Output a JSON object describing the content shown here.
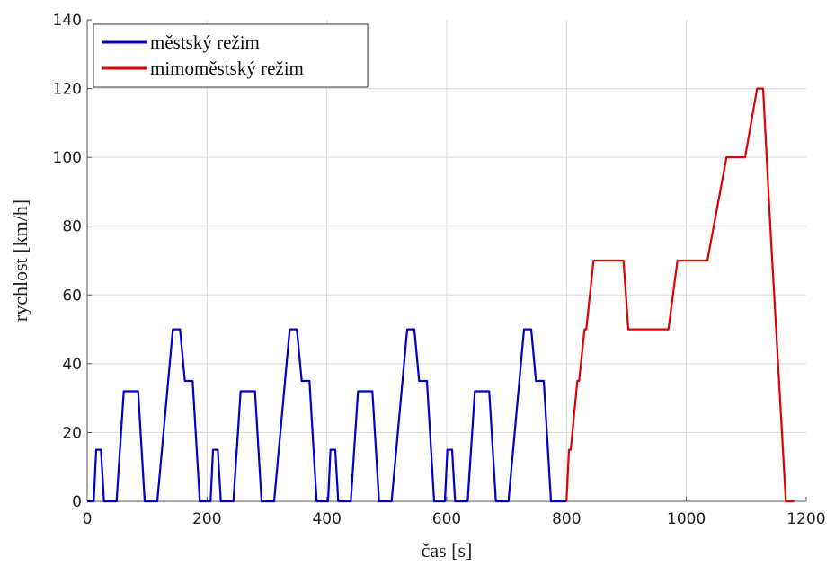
{
  "chart_data": {
    "type": "line",
    "xlabel": "čas [s]",
    "ylabel": "rychlost [km/h]",
    "xlim": [
      0,
      1200
    ],
    "ylim": [
      0,
      140
    ],
    "xticks": [
      0,
      200,
      400,
      600,
      800,
      1000,
      1200
    ],
    "yticks": [
      0,
      20,
      40,
      60,
      80,
      100,
      120,
      140
    ],
    "grid": true,
    "legend_position": "top-left",
    "series": [
      {
        "name": "městský režim",
        "color": "#0000c8",
        "points": [
          [
            0,
            0
          ],
          [
            11,
            0
          ],
          [
            15,
            15
          ],
          [
            23,
            15
          ],
          [
            28,
            0
          ],
          [
            49,
            0
          ],
          [
            61,
            32
          ],
          [
            85,
            32
          ],
          [
            96,
            0
          ],
          [
            117,
            0
          ],
          [
            143,
            50
          ],
          [
            155,
            50
          ],
          [
            163,
            35
          ],
          [
            176,
            35
          ],
          [
            188,
            0
          ],
          [
            206,
            0
          ],
          [
            210,
            15
          ],
          [
            218,
            15
          ],
          [
            223,
            0
          ],
          [
            244,
            0
          ],
          [
            256,
            32
          ],
          [
            280,
            32
          ],
          [
            291,
            0
          ],
          [
            312,
            0
          ],
          [
            338,
            50
          ],
          [
            350,
            50
          ],
          [
            358,
            35
          ],
          [
            371,
            35
          ],
          [
            383,
            0
          ],
          [
            402,
            0
          ],
          [
            406,
            15
          ],
          [
            414,
            15
          ],
          [
            419,
            0
          ],
          [
            440,
            0
          ],
          [
            452,
            32
          ],
          [
            476,
            32
          ],
          [
            487,
            0
          ],
          [
            508,
            0
          ],
          [
            534,
            50
          ],
          [
            546,
            50
          ],
          [
            554,
            35
          ],
          [
            567,
            35
          ],
          [
            579,
            0
          ],
          [
            597,
            0
          ],
          [
            601,
            15
          ],
          [
            609,
            15
          ],
          [
            614,
            0
          ],
          [
            635,
            0
          ],
          [
            647,
            32
          ],
          [
            671,
            32
          ],
          [
            682,
            0
          ],
          [
            703,
            0
          ],
          [
            729,
            50
          ],
          [
            741,
            50
          ],
          [
            749,
            35
          ],
          [
            762,
            35
          ],
          [
            774,
            0
          ],
          [
            800,
            0
          ]
        ]
      },
      {
        "name": "mimoměstský režim",
        "color": "#e00000",
        "points": [
          [
            800,
            0
          ],
          [
            804,
            15
          ],
          [
            807,
            15
          ],
          [
            818,
            35
          ],
          [
            821,
            35
          ],
          [
            830,
            50
          ],
          [
            833,
            50
          ],
          [
            845,
            70
          ],
          [
            895,
            70
          ],
          [
            903,
            50
          ],
          [
            970,
            50
          ],
          [
            985,
            70
          ],
          [
            1035,
            70
          ],
          [
            1067,
            100
          ],
          [
            1098,
            100
          ],
          [
            1118,
            120
          ],
          [
            1128,
            120
          ],
          [
            1140,
            80
          ],
          [
            1166,
            0
          ],
          [
            1180,
            0
          ]
        ]
      }
    ]
  }
}
